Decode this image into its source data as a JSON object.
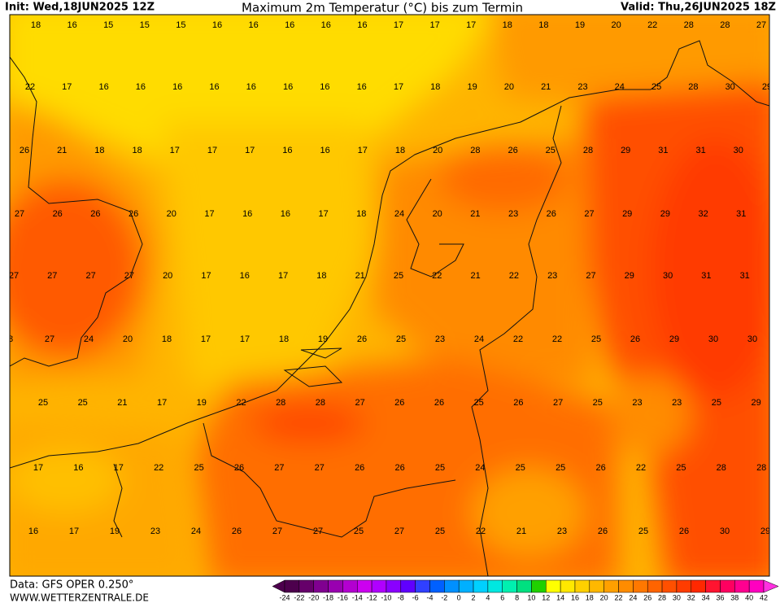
{
  "header": {
    "init": "Init: Wed,18JUN2025 12Z",
    "title": "Maximum 2m Temperatur (°C) bis zum Termin",
    "valid": "Valid: Thu,26JUN2025 18Z"
  },
  "map": {
    "rows": [
      [
        18,
        16,
        15,
        15,
        15,
        16,
        16,
        16,
        16,
        16,
        17,
        17,
        17,
        18,
        18,
        19,
        20,
        22,
        28,
        28,
        27
      ],
      [
        22,
        17,
        16,
        16,
        16,
        16,
        16,
        16,
        16,
        16,
        17,
        18,
        19,
        20,
        21,
        23,
        24,
        25,
        28,
        30,
        29
      ],
      [
        26,
        21,
        18,
        18,
        17,
        17,
        17,
        16,
        16,
        17,
        18,
        20,
        28,
        26,
        25,
        28,
        29,
        31,
        31,
        30
      ],
      [
        27,
        26,
        26,
        26,
        20,
        17,
        16,
        16,
        17,
        18,
        24,
        20,
        21,
        23,
        26,
        27,
        29,
        29,
        32,
        31
      ],
      [
        27,
        27,
        27,
        27,
        20,
        17,
        16,
        17,
        18,
        21,
        25,
        22,
        21,
        22,
        23,
        27,
        29,
        30,
        31,
        31
      ],
      [
        8,
        27,
        24,
        20,
        18,
        17,
        17,
        18,
        19,
        26,
        25,
        23,
        24,
        22,
        22,
        25,
        26,
        29,
        30,
        30
      ],
      [
        25,
        25,
        21,
        17,
        19,
        22,
        28,
        28,
        27,
        26,
        26,
        25,
        26,
        27,
        25,
        23,
        23,
        25,
        29
      ],
      [
        17,
        16,
        17,
        22,
        25,
        26,
        27,
        27,
        26,
        26,
        25,
        24,
        25,
        25,
        26,
        22,
        25,
        28,
        28
      ],
      [
        16,
        17,
        19,
        23,
        24,
        26,
        27,
        27,
        25,
        27,
        25,
        22,
        21,
        23,
        26,
        25,
        26,
        30,
        29
      ]
    ]
  },
  "legend": {
    "labels": [
      -24,
      -22,
      -20,
      -18,
      -16,
      -14,
      -12,
      -10,
      -8,
      -6,
      -4,
      -2,
      0,
      2,
      4,
      6,
      8,
      10,
      12,
      14,
      16,
      18,
      20,
      22,
      24,
      26,
      28,
      30,
      32,
      34,
      36,
      38,
      40,
      42
    ],
    "colors": [
      "#4d004d",
      "#4d004d",
      "#66006a",
      "#800090",
      "#9900b0",
      "#b300d0",
      "#cc00f0",
      "#b000ff",
      "#8a00ff",
      "#6000ff",
      "#3040ff",
      "#0060ff",
      "#0090ff",
      "#00b0ff",
      "#00d0ff",
      "#00e8e0",
      "#00f0b0",
      "#00e080",
      "#20d000",
      "#ffff00",
      "#ffe800",
      "#ffd000",
      "#ffb800",
      "#ffa000",
      "#ff8c00",
      "#ff7800",
      "#ff6400",
      "#ff5000",
      "#ff3c00",
      "#ff2800",
      "#ff1430",
      "#ff0060",
      "#ff0090",
      "#ff00c0",
      "#ff30e0"
    ]
  },
  "footer": {
    "source": "Data: GFS OPER 0.250°",
    "site": "WWW.WETTERZENTRALE.DE"
  }
}
